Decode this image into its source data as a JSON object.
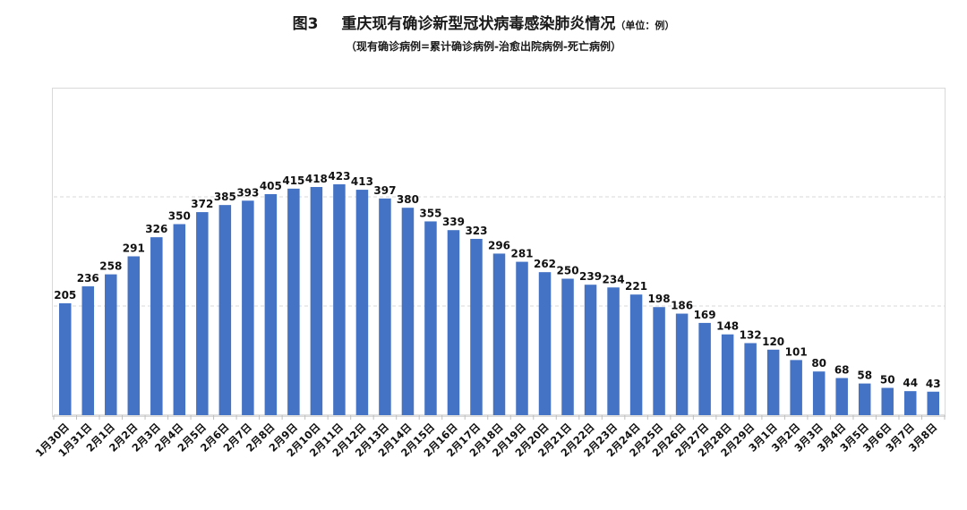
{
  "header": {
    "figure_no": "图3",
    "title": "重庆现有确诊新型冠状病毒感染肺炎情况",
    "unit": "（单位：例）",
    "subtitle": "（现有确诊病例=累计确诊病例-治愈出院病例-死亡病例）"
  },
  "colors": {
    "bar": "#4472C4",
    "grid": "#d9d9d9",
    "axis": "#bfbfbf"
  },
  "chart_data": {
    "type": "bar",
    "title": "重庆现有确诊新型冠状病毒感染肺炎情况",
    "categories": [
      "1月30日",
      "1月31日",
      "2月1日",
      "2月2日",
      "2月3日",
      "2月4日",
      "2月5日",
      "2月6日",
      "2月7日",
      "2月8日",
      "2月9日",
      "2月10日",
      "2月11日",
      "2月12日",
      "2月13日",
      "2月14日",
      "2月15日",
      "2月16日",
      "2月17日",
      "2月18日",
      "2月19日",
      "2月20日",
      "2月21日",
      "2月22日",
      "2月23日",
      "2月24日",
      "2月25日",
      "2月26日",
      "2月27日",
      "2月28日",
      "2月29日",
      "3月1日",
      "3月2日",
      "3月3日",
      "3月4日",
      "3月5日",
      "3月6日",
      "3月7日",
      "3月8日"
    ],
    "values": [
      205,
      236,
      258,
      291,
      326,
      350,
      372,
      385,
      393,
      405,
      415,
      418,
      423,
      413,
      397,
      380,
      355,
      339,
      323,
      296,
      281,
      262,
      250,
      239,
      234,
      221,
      198,
      186,
      169,
      148,
      132,
      120,
      101,
      80,
      68,
      58,
      50,
      44,
      43
    ],
    "ylim": [
      0,
      600
    ],
    "y_gridlines": [
      200,
      400
    ],
    "grid": true,
    "data_labels": true,
    "legend": "none"
  }
}
